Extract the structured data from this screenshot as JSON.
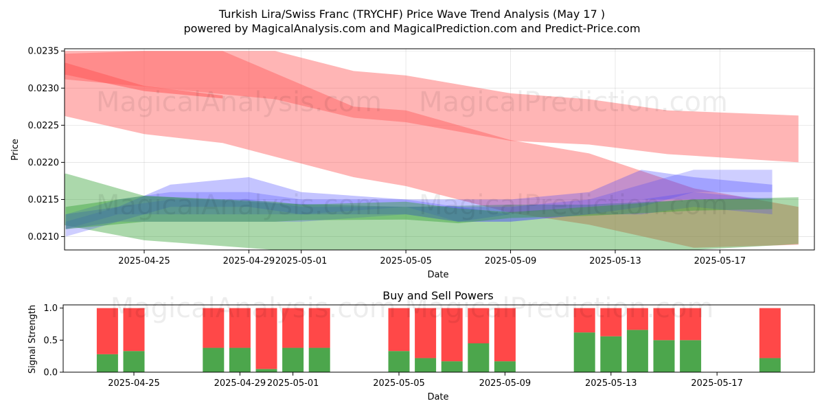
{
  "title_line1": "Turkish Lira/Swiss Franc (TRYCHF) Price Wave Trend Analysis (May 17 )",
  "title_line2": "powered by MagicalAnalysis.com and MagicalPrediction.com and Predict-Price.com",
  "watermark_top_1": "MagicalAnalysis.com",
  "watermark_top_2": "MagicalPrediction.com",
  "watermark_mid": "MagicalAnalysis.com",
  "watermark_mid_2": "MagicalPrediction.com",
  "watermark_bottom": "MagicalAnalysis.com    MagicalPrediction.com",
  "colors": {
    "red_band": "#ff5a5a",
    "blue_band": "#3a3aff",
    "green_band": "#2e9e2e",
    "buy": "#4ca64c",
    "sell": "#ff4848"
  },
  "chart_data": [
    {
      "type": "area",
      "xlabel": "Date",
      "ylabel": "Price",
      "ylim": [
        0.02082,
        0.02353
      ],
      "yticks": [
        "0.0210",
        "0.0215",
        "0.0220",
        "0.0225",
        "0.0230",
        "0.0235"
      ],
      "xticks": [
        "2025-04-25",
        "2025-04-29",
        "2025-05-01",
        "2025-05-05",
        "2025-05-09",
        "2025-05-13",
        "2025-05-17"
      ],
      "grid": true,
      "bands": [
        {
          "color": "red",
          "opacity": 0.45,
          "x": [
            "2025-04-21",
            "2025-04-25",
            "2025-04-30",
            "2025-05-03",
            "2025-05-05",
            "2025-05-09",
            "2025-05-12",
            "2025-05-15",
            "2025-05-20"
          ],
          "upper": [
            0.02345,
            0.0235,
            0.0235,
            0.02323,
            0.02317,
            0.02293,
            0.02285,
            0.0227,
            0.02263
          ],
          "lower": [
            0.02315,
            0.02302,
            0.02285,
            0.0226,
            0.02254,
            0.02229,
            0.02224,
            0.02211,
            0.022
          ]
        },
        {
          "color": "red",
          "opacity": 0.45,
          "x": [
            "2025-04-21",
            "2025-04-22",
            "2025-04-25",
            "2025-04-28",
            "2025-05-03",
            "2025-05-05",
            "2025-05-09",
            "2025-05-12",
            "2025-05-16",
            "2025-05-20"
          ],
          "upper": [
            0.02325,
            0.0235,
            0.0235,
            0.0235,
            0.02275,
            0.0227,
            0.0223,
            0.02212,
            0.02165,
            0.0214
          ],
          "lower": [
            0.02272,
            0.02262,
            0.02238,
            0.02226,
            0.0218,
            0.02168,
            0.02132,
            0.02116,
            0.02085,
            0.02089
          ]
        },
        {
          "color": "red",
          "opacity": 0.55,
          "x": [
            "2025-04-21",
            "2025-04-22",
            "2025-04-25",
            "2025-04-28"
          ],
          "upper": [
            0.02319,
            0.02334,
            0.02303,
            0.0229
          ],
          "lower": [
            0.02305,
            0.02318,
            0.02296,
            0.02286
          ]
        },
        {
          "color": "green",
          "opacity": 0.4,
          "x": [
            "2025-04-21",
            "2025-04-22",
            "2025-04-25",
            "2025-04-30",
            "2025-05-05",
            "2025-05-09",
            "2025-05-12",
            "2025-05-16",
            "2025-05-20"
          ],
          "upper": [
            0.02165,
            0.02185,
            0.02155,
            0.02145,
            0.0214,
            0.02143,
            0.02143,
            0.0215,
            0.02153
          ],
          "lower": [
            0.02123,
            0.02115,
            0.02095,
            0.02082,
            0.02075,
            0.02076,
            0.02078,
            0.02082,
            0.0209
          ]
        },
        {
          "color": "blue",
          "opacity": 0.3,
          "x": [
            "2025-04-22",
            "2025-04-24",
            "2025-04-26",
            "2025-04-29",
            "2025-05-01",
            "2025-05-05",
            "2025-05-07",
            "2025-05-09",
            "2025-05-12",
            "2025-05-14",
            "2025-05-16",
            "2025-05-19"
          ],
          "upper": [
            0.0213,
            0.0214,
            0.0217,
            0.0218,
            0.0216,
            0.0215,
            0.0215,
            0.0215,
            0.0216,
            0.0219,
            0.0218,
            0.0217
          ],
          "lower": [
            0.0211,
            0.0212,
            0.0214,
            0.0214,
            0.0213,
            0.0213,
            0.0212,
            0.0213,
            0.0214,
            0.0215,
            0.0215,
            0.0215
          ]
        },
        {
          "color": "blue",
          "opacity": 0.25,
          "x": [
            "2025-04-22",
            "2025-04-24",
            "2025-04-26",
            "2025-04-29",
            "2025-05-01",
            "2025-05-05",
            "2025-05-07",
            "2025-05-09",
            "2025-05-12",
            "2025-05-14",
            "2025-05-16",
            "2025-05-19"
          ],
          "upper": [
            0.0213,
            0.0215,
            0.0216,
            0.0216,
            0.0215,
            0.0215,
            0.0214,
            0.0214,
            0.0215,
            0.0217,
            0.0219,
            0.0219
          ],
          "lower": [
            0.0211,
            0.0213,
            0.0213,
            0.0213,
            0.0213,
            0.0214,
            0.0212,
            0.0212,
            0.0213,
            0.0214,
            0.0216,
            0.0216
          ]
        },
        {
          "color": "blue",
          "opacity": 0.25,
          "x": [
            "2025-04-22",
            "2025-04-24",
            "2025-04-26",
            "2025-04-29",
            "2025-05-01",
            "2025-05-05",
            "2025-05-07",
            "2025-05-09",
            "2025-05-12",
            "2025-05-14",
            "2025-05-16",
            "2025-05-19"
          ],
          "upper": [
            0.0212,
            0.0214,
            0.0215,
            0.0215,
            0.0214,
            0.0214,
            0.0214,
            0.0213,
            0.0214,
            0.0215,
            0.0216,
            0.0215
          ],
          "lower": [
            0.021,
            0.0212,
            0.0212,
            0.0212,
            0.0212,
            0.0213,
            0.0212,
            0.0212,
            0.0213,
            0.0213,
            0.0214,
            0.0213
          ]
        },
        {
          "color": "green",
          "opacity": 0.4,
          "x": [
            "2025-04-22",
            "2025-04-25",
            "2025-04-30",
            "2025-05-01",
            "2025-05-05",
            "2025-05-07",
            "2025-05-09",
            "2025-05-12",
            "2025-05-16",
            "2025-05-19"
          ],
          "upper": [
            0.0214,
            0.02155,
            0.02147,
            0.02143,
            0.02147,
            0.02138,
            0.02133,
            0.0214,
            0.0215,
            0.02151
          ],
          "lower": [
            0.0211,
            0.0212,
            0.0212,
            0.02122,
            0.02123,
            0.02118,
            0.02125,
            0.02128,
            0.02135,
            0.02137
          ]
        }
      ]
    },
    {
      "type": "bar",
      "title": "Buy and Sell Powers",
      "xlabel": "Date",
      "ylabel": "Signal Strength",
      "ylim": [
        0,
        1.05
      ],
      "yticks": [
        "0.0",
        "0.5",
        "1.0"
      ],
      "xticks": [
        "2025-04-25",
        "2025-04-29",
        "2025-05-01",
        "2025-05-05",
        "2025-05-09",
        "2025-05-13",
        "2025-05-17"
      ],
      "series": [
        {
          "name": "buy",
          "dates": [
            "2025-04-24",
            "2025-04-25",
            "2025-04-28",
            "2025-04-29",
            "2025-04-30",
            "2025-05-01",
            "2025-05-02",
            "2025-05-05",
            "2025-05-06",
            "2025-05-07",
            "2025-05-08",
            "2025-05-09",
            "2025-05-12",
            "2025-05-13",
            "2025-05-14",
            "2025-05-15",
            "2025-05-16",
            "2025-05-19"
          ],
          "values": [
            0.28,
            0.33,
            0.38,
            0.38,
            0.05,
            0.38,
            0.38,
            0.33,
            0.22,
            0.17,
            0.45,
            0.17,
            0.62,
            0.56,
            0.66,
            0.5,
            0.5,
            0.22
          ]
        },
        {
          "name": "sell",
          "dates": [
            "2025-04-24",
            "2025-04-25",
            "2025-04-28",
            "2025-04-29",
            "2025-04-30",
            "2025-05-01",
            "2025-05-02",
            "2025-05-05",
            "2025-05-06",
            "2025-05-07",
            "2025-05-08",
            "2025-05-09",
            "2025-05-12",
            "2025-05-13",
            "2025-05-14",
            "2025-05-15",
            "2025-05-16",
            "2025-05-19"
          ],
          "values": [
            0.72,
            0.67,
            0.62,
            0.62,
            0.95,
            0.62,
            0.62,
            0.67,
            0.78,
            0.83,
            0.55,
            0.83,
            0.38,
            0.44,
            0.34,
            0.5,
            0.5,
            0.78
          ]
        }
      ]
    }
  ]
}
